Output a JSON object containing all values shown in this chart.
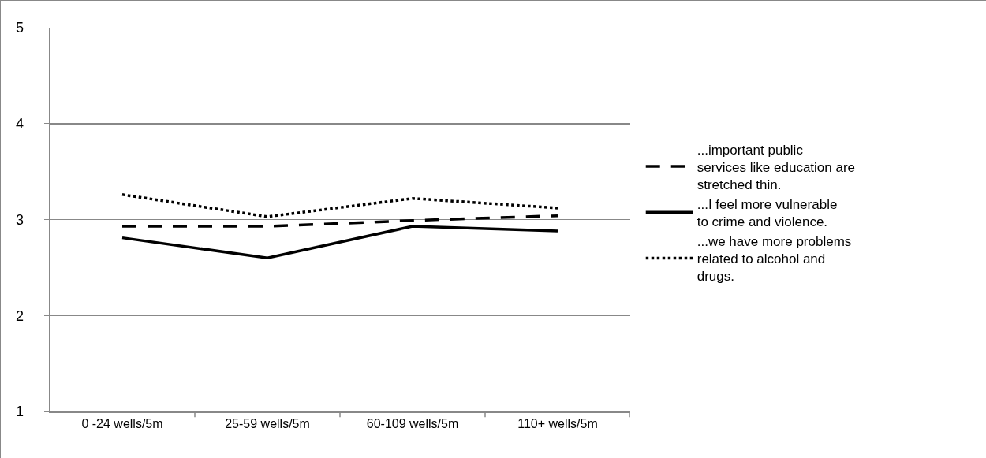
{
  "chart_data": {
    "type": "line",
    "categories": [
      "0 -24 wells/5m",
      "25-59 wells/5m",
      "60-109 wells/5m",
      "110+ wells/5m"
    ],
    "series": [
      {
        "name": "...important public services like education are stretched thin.",
        "color": "#000000",
        "line_style": "dashed",
        "values": [
          2.93,
          2.93,
          2.99,
          3.04
        ]
      },
      {
        "name": "...I feel more vulnerable to crime and violence.",
        "color": "#000000",
        "line_style": "solid",
        "values": [
          2.81,
          2.6,
          2.93,
          2.88
        ]
      },
      {
        "name": "...we have more problems related to alcohol and drugs.",
        "color": "#000000",
        "line_style": "dotted",
        "values": [
          3.26,
          3.03,
          3.22,
          3.12
        ]
      }
    ],
    "ylim": [
      1,
      5
    ],
    "yticks": [
      1,
      2,
      3,
      4,
      5
    ],
    "grid": "y",
    "legend": "right",
    "marker": "none"
  }
}
